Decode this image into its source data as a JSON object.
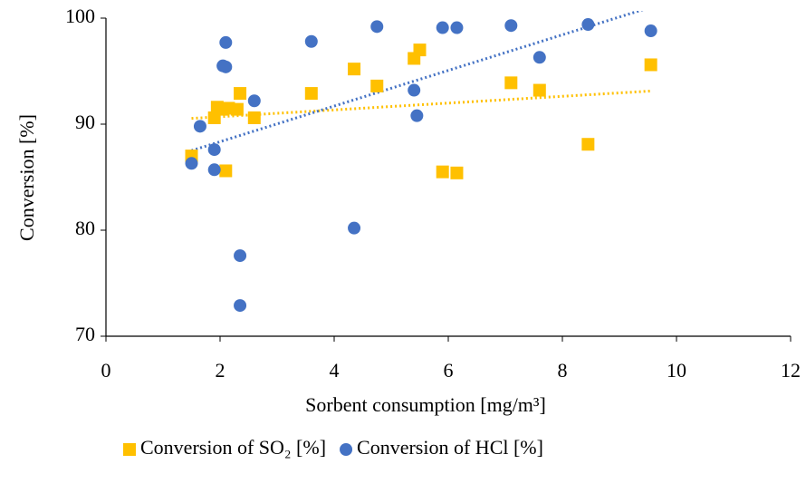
{
  "chart_data": {
    "type": "scatter",
    "x_label": "Sorbent consumption [mg/m³]",
    "y_label": "Conversion [%]",
    "xlim": [
      0,
      12
    ],
    "xticks": [
      0,
      2,
      4,
      6,
      8,
      10,
      12
    ],
    "ylim": [
      70,
      100
    ],
    "yticks": [
      70,
      80,
      90,
      100
    ],
    "trendline": "linear",
    "legend": "bottom",
    "series": [
      {
        "name": "Conversion of SO₂ [%]",
        "color": "#ffc000",
        "marker": "square",
        "x": [
          1.5,
          1.9,
          1.95,
          2.05,
          2.15,
          2.3,
          2.35,
          2.6,
          2.1,
          3.6,
          4.35,
          4.75,
          5.4,
          5.5,
          5.9,
          6.15,
          7.1,
          7.6,
          8.45,
          9.55
        ],
        "values": [
          87.0,
          90.6,
          91.6,
          91.4,
          91.5,
          91.4,
          92.9,
          90.6,
          85.6,
          92.9,
          95.2,
          93.6,
          96.2,
          97.0,
          85.5,
          85.4,
          93.9,
          93.2,
          88.1,
          95.6
        ]
      },
      {
        "name": "Conversion of HCl [%]",
        "color": "#4472c4",
        "marker": "circle",
        "x": [
          1.5,
          1.65,
          1.9,
          1.9,
          2.05,
          2.1,
          2.1,
          2.35,
          2.35,
          2.6,
          3.6,
          4.35,
          4.75,
          5.4,
          5.45,
          5.9,
          6.15,
          7.1,
          7.6,
          8.45,
          9.55
        ],
        "values": [
          86.3,
          89.8,
          87.6,
          85.7,
          95.5,
          95.4,
          97.7,
          77.6,
          72.9,
          92.2,
          97.8,
          80.2,
          99.2,
          93.2,
          90.8,
          99.1,
          99.1,
          99.3,
          96.3,
          99.4,
          98.8
        ]
      }
    ]
  }
}
